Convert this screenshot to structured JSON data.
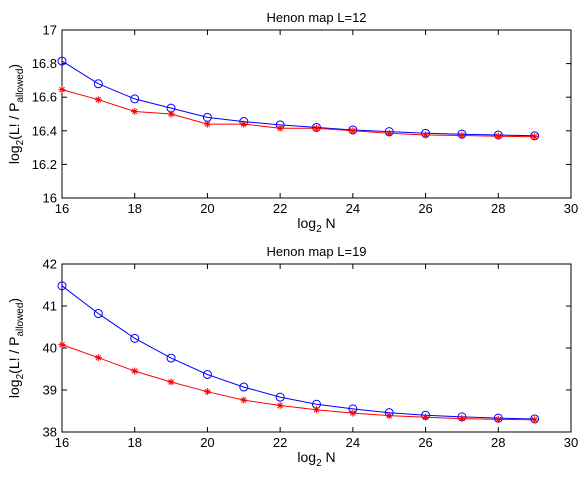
{
  "chart_data": [
    {
      "type": "line",
      "title": "Henon map L=12",
      "xlabel": {
        "base": "log",
        "sub": "2",
        "rest": " N"
      },
      "ylabel": {
        "base": "log",
        "sub": "2",
        "mid": "(L! / P",
        "sub2": "allowed",
        "end": ")"
      },
      "xlim": [
        16,
        30
      ],
      "ylim": [
        16,
        17
      ],
      "xticks": [
        "16",
        "18",
        "20",
        "22",
        "24",
        "26",
        "28",
        "30"
      ],
      "yticks": [
        "16",
        "16.2",
        "16.4",
        "16.6",
        "16.8",
        "17"
      ],
      "grid": false,
      "series": [
        {
          "marker": "circle",
          "color": "#0000ff",
          "x": [
            16,
            17,
            18,
            19,
            20,
            21,
            22,
            23,
            24,
            25,
            26,
            27,
            28,
            29
          ],
          "values": [
            16.815,
            16.68,
            16.59,
            16.535,
            16.48,
            16.455,
            16.435,
            16.42,
            16.405,
            16.395,
            16.385,
            16.38,
            16.375,
            16.37
          ]
        },
        {
          "marker": "asterisk",
          "color": "#ff0000",
          "x": [
            16,
            17,
            18,
            19,
            20,
            21,
            22,
            23,
            24,
            25,
            26,
            27,
            28,
            29
          ],
          "values": [
            16.645,
            16.585,
            16.515,
            16.5,
            16.44,
            16.44,
            16.415,
            16.415,
            16.4,
            16.385,
            16.375,
            16.372,
            16.368,
            16.365
          ]
        }
      ]
    },
    {
      "type": "line",
      "title": "Henon map L=19",
      "xlabel": {
        "base": "log",
        "sub": "2",
        "rest": " N"
      },
      "ylabel": {
        "base": "log",
        "sub": "2",
        "mid": "(L! / P",
        "sub2": "allowed",
        "end": ")"
      },
      "xlim": [
        16,
        30
      ],
      "ylim": [
        38,
        42
      ],
      "xticks": [
        "16",
        "18",
        "20",
        "22",
        "24",
        "26",
        "28",
        "30"
      ],
      "yticks": [
        "38",
        "39",
        "40",
        "41",
        "42"
      ],
      "grid": false,
      "series": [
        {
          "marker": "circle",
          "color": "#0000ff",
          "x": [
            16,
            17,
            18,
            19,
            20,
            21,
            22,
            23,
            24,
            25,
            26,
            27,
            28,
            29
          ],
          "values": [
            41.48,
            40.82,
            40.23,
            39.76,
            39.37,
            39.07,
            38.83,
            38.66,
            38.55,
            38.46,
            38.4,
            38.36,
            38.33,
            38.31
          ]
        },
        {
          "marker": "asterisk",
          "color": "#ff0000",
          "x": [
            16,
            17,
            18,
            19,
            20,
            21,
            22,
            23,
            24,
            25,
            26,
            27,
            28,
            29
          ],
          "values": [
            40.08,
            39.77,
            39.45,
            39.19,
            38.96,
            38.76,
            38.63,
            38.53,
            38.45,
            38.39,
            38.35,
            38.32,
            38.3,
            38.29
          ]
        }
      ]
    }
  ]
}
